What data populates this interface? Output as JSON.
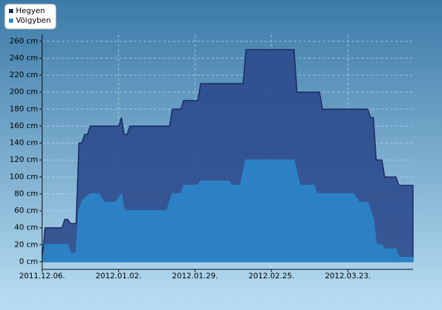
{
  "chart_data": {
    "type": "area",
    "xlim": [
      "2011-12-06",
      "2012-04-15"
    ],
    "xticks": [
      {
        "value": "2011-12-06",
        "label": "2011.12.06."
      },
      {
        "value": "2012-01-02",
        "label": "2012.01.02."
      },
      {
        "value": "2012-01-29",
        "label": "2012.01.29."
      },
      {
        "value": "2012-02-25",
        "label": "2012.02.25."
      },
      {
        "value": "2012-03-23",
        "label": "2012.03.23."
      }
    ],
    "ylim": [
      -9,
      268
    ],
    "yticks": [
      {
        "value": 0,
        "label": "0 cm"
      },
      {
        "value": 20,
        "label": "20 cm"
      },
      {
        "value": 40,
        "label": "40 cm"
      },
      {
        "value": 60,
        "label": "60 cm"
      },
      {
        "value": 80,
        "label": "80 cm"
      },
      {
        "value": 100,
        "label": "100 cm"
      },
      {
        "value": 120,
        "label": "120 cm"
      },
      {
        "value": 140,
        "label": "140 cm"
      },
      {
        "value": 160,
        "label": "160 cm"
      },
      {
        "value": 180,
        "label": "180 cm"
      },
      {
        "value": 200,
        "label": "200 cm"
      },
      {
        "value": 220,
        "label": "220 cm"
      },
      {
        "value": 240,
        "label": "240 cm"
      },
      {
        "value": 260,
        "label": "260 cm"
      }
    ],
    "grid": true,
    "legend": "top-left",
    "series": [
      {
        "name": "Hegyen",
        "color": "#2b4a8c",
        "line_color": "#14275e",
        "x": [
          "2011-12-06",
          "2011-12-07",
          "2011-12-13",
          "2011-12-14",
          "2011-12-15",
          "2011-12-16",
          "2011-12-18",
          "2011-12-19",
          "2011-12-20",
          "2011-12-21",
          "2011-12-22",
          "2011-12-23",
          "2012-01-02",
          "2012-01-03",
          "2012-01-04",
          "2012-01-05",
          "2012-01-06",
          "2012-01-20",
          "2012-01-21",
          "2012-01-24",
          "2012-01-25",
          "2012-01-30",
          "2012-01-31",
          "2012-02-15",
          "2012-02-16",
          "2012-03-04",
          "2012-03-05",
          "2012-03-13",
          "2012-03-14",
          "2012-03-30",
          "2012-03-31",
          "2012-04-01",
          "2012-04-02",
          "2012-04-04",
          "2012-04-05",
          "2012-04-09",
          "2012-04-10",
          "2012-04-15"
        ],
        "values": [
          0,
          40,
          40,
          50,
          50,
          45,
          45,
          140,
          140,
          150,
          150,
          160,
          160,
          170,
          150,
          150,
          160,
          160,
          180,
          180,
          190,
          190,
          210,
          210,
          250,
          250,
          200,
          200,
          180,
          180,
          170,
          170,
          120,
          120,
          100,
          100,
          90,
          90
        ]
      },
      {
        "name": "Völgyben",
        "color": "#2a86c9",
        "line_color": "#2a86c9",
        "x": [
          "2011-12-06",
          "2011-12-07",
          "2011-12-15",
          "2011-12-16",
          "2011-12-18",
          "2011-12-19",
          "2011-12-20",
          "2011-12-21",
          "2011-12-23",
          "2011-12-26",
          "2011-12-28",
          "2012-01-01",
          "2012-01-03",
          "2012-01-04",
          "2012-01-19",
          "2012-01-21",
          "2012-01-24",
          "2012-01-25",
          "2012-01-30",
          "2012-01-31",
          "2012-02-10",
          "2012-02-11",
          "2012-02-14",
          "2012-02-16",
          "2012-03-04",
          "2012-03-06",
          "2012-03-11",
          "2012-03-12",
          "2012-03-25",
          "2012-03-27",
          "2012-03-30",
          "2012-04-01",
          "2012-04-02",
          "2012-04-04",
          "2012-04-05",
          "2012-04-09",
          "2012-04-10",
          "2012-04-15"
        ],
        "values": [
          0,
          20,
          20,
          10,
          10,
          60,
          70,
          75,
          80,
          80,
          70,
          70,
          80,
          60,
          60,
          80,
          80,
          90,
          90,
          95,
          95,
          90,
          90,
          120,
          120,
          90,
          90,
          80,
          80,
          70,
          70,
          50,
          20,
          20,
          15,
          15,
          5,
          5
        ]
      }
    ]
  }
}
